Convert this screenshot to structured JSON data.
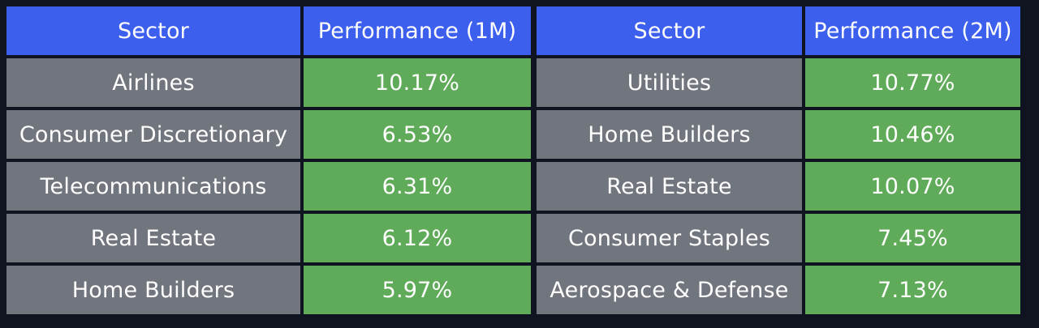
{
  "chart_data": [
    {
      "type": "table",
      "columns": [
        "Sector",
        "Performance (1M)"
      ],
      "rows": [
        {
          "sector": "Airlines",
          "performance": "10.17%"
        },
        {
          "sector": "Consumer Discretionary",
          "performance": "6.53%"
        },
        {
          "sector": "Telecommunications",
          "performance": "6.31%"
        },
        {
          "sector": "Real Estate",
          "performance": "6.12%"
        },
        {
          "sector": "Home Builders",
          "performance": "5.97%"
        }
      ]
    },
    {
      "type": "table",
      "columns": [
        "Sector",
        "Performance (2M)"
      ],
      "rows": [
        {
          "sector": "Utilities",
          "performance": "10.77%"
        },
        {
          "sector": "Home Builders",
          "performance": "10.46%"
        },
        {
          "sector": "Real Estate",
          "performance": "10.07%"
        },
        {
          "sector": "Consumer Staples",
          "performance": "7.45%"
        },
        {
          "sector": "Aerospace & Defense",
          "performance": "7.13%"
        }
      ]
    }
  ],
  "colors": {
    "background": "#0f1420",
    "header": "#3d5fee",
    "sector_cell": "#71757e",
    "performance_cell": "#5fab59",
    "text": "#ffffff"
  }
}
